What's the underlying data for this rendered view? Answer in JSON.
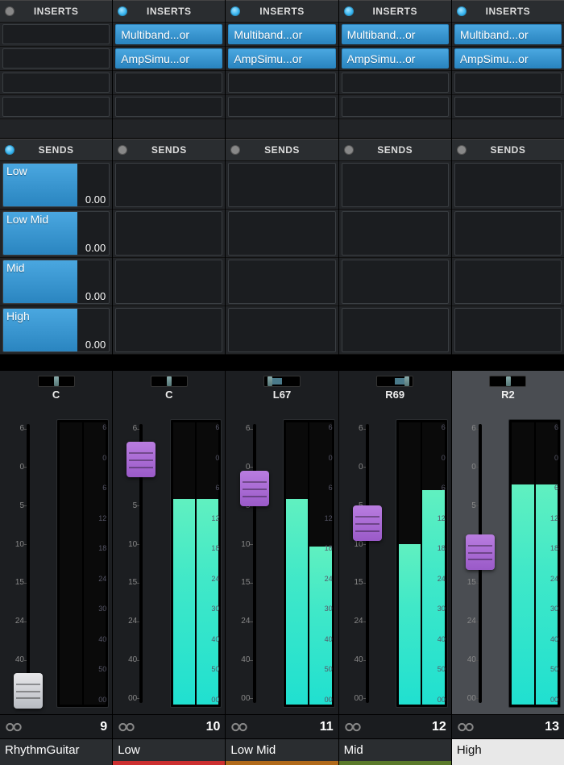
{
  "labels": {
    "inserts": "INSERTS",
    "sends": "SENDS"
  },
  "colors": {
    "fader_purple": "linear-gradient(to bottom,#b97de0,#9a5ac8)",
    "fader_white": "linear-gradient(to bottom,#e8e8ea,#b8bcc2)",
    "insert_bg": "linear-gradient(to bottom,#4aa7e0,#2a85c0)"
  },
  "insert_labels": {
    "multiband": "Multiband...or",
    "ampsim": "AmpSimu...or"
  },
  "fader_scale": [
    "6",
    "0",
    "5",
    "10",
    "15",
    "24",
    "40",
    "00"
  ],
  "meter_scale": [
    "6",
    "0",
    "6",
    "12",
    "18",
    "24",
    "30",
    "40",
    "50",
    "00"
  ],
  "channels": [
    {
      "number": "9",
      "name": "RhythmGuitar",
      "name_light": false,
      "color_bar": "#2a2d30",
      "inserts_lit": false,
      "sends_lit": true,
      "inserts": [
        null,
        null,
        null,
        null
      ],
      "sends": [
        {
          "label": "Low",
          "value": "0.00",
          "fill_pct": 70
        },
        {
          "label": "Low Mid",
          "value": "0.00",
          "fill_pct": 70
        },
        {
          "label": "Mid",
          "value": "0.00",
          "fill_pct": 70
        },
        {
          "label": "High",
          "value": "0.00",
          "fill_pct": 70
        }
      ],
      "pan": {
        "label": "C",
        "pos_pct": 50,
        "fill_from": 50,
        "fill_to": 50
      },
      "fader": {
        "pos_pct": 94,
        "cap": "white"
      },
      "meter": {
        "l_pct": 0,
        "r_pct": 0
      },
      "selected": false
    },
    {
      "number": "10",
      "name": "Low",
      "name_light": false,
      "color_bar": "#cc3030",
      "inserts_lit": true,
      "sends_lit": false,
      "inserts": [
        "multiband",
        "ampsim",
        null,
        null
      ],
      "sends": [
        null,
        null,
        null,
        null
      ],
      "pan": {
        "label": "C",
        "pos_pct": 50,
        "fill_from": 50,
        "fill_to": 50
      },
      "fader": {
        "pos_pct": 14,
        "cap": "purple"
      },
      "meter": {
        "l_pct": 73,
        "r_pct": 73
      },
      "selected": false
    },
    {
      "number": "11",
      "name": "Low Mid",
      "name_light": false,
      "color_bar": "#b06a1a",
      "inserts_lit": true,
      "sends_lit": false,
      "inserts": [
        "multiband",
        "ampsim",
        null,
        null
      ],
      "sends": [
        null,
        null,
        null,
        null
      ],
      "pan": {
        "label": "L67",
        "pos_pct": 16,
        "fill_from": 16,
        "fill_to": 50
      },
      "fader": {
        "pos_pct": 24,
        "cap": "purple"
      },
      "meter": {
        "l_pct": 73,
        "r_pct": 56
      },
      "selected": false
    },
    {
      "number": "12",
      "name": "Mid",
      "name_light": false,
      "color_bar": "#5a7a2a",
      "inserts_lit": true,
      "sends_lit": false,
      "inserts": [
        "multiband",
        "ampsim",
        null,
        null
      ],
      "sends": [
        null,
        null,
        null,
        null
      ],
      "pan": {
        "label": "R69",
        "pos_pct": 84,
        "fill_from": 50,
        "fill_to": 84
      },
      "fader": {
        "pos_pct": 36,
        "cap": "purple"
      },
      "meter": {
        "l_pct": 57,
        "r_pct": 76
      },
      "selected": false
    },
    {
      "number": "13",
      "name": "High",
      "name_light": true,
      "color_bar": "#e8e8e8",
      "inserts_lit": true,
      "sends_lit": false,
      "inserts": [
        "multiband",
        "ampsim",
        null,
        null
      ],
      "sends": [
        null,
        null,
        null,
        null
      ],
      "pan": {
        "label": "R2",
        "pos_pct": 52,
        "fill_from": 50,
        "fill_to": 52
      },
      "fader": {
        "pos_pct": 46,
        "cap": "purple"
      },
      "meter": {
        "l_pct": 78,
        "r_pct": 78
      },
      "selected": true
    }
  ]
}
